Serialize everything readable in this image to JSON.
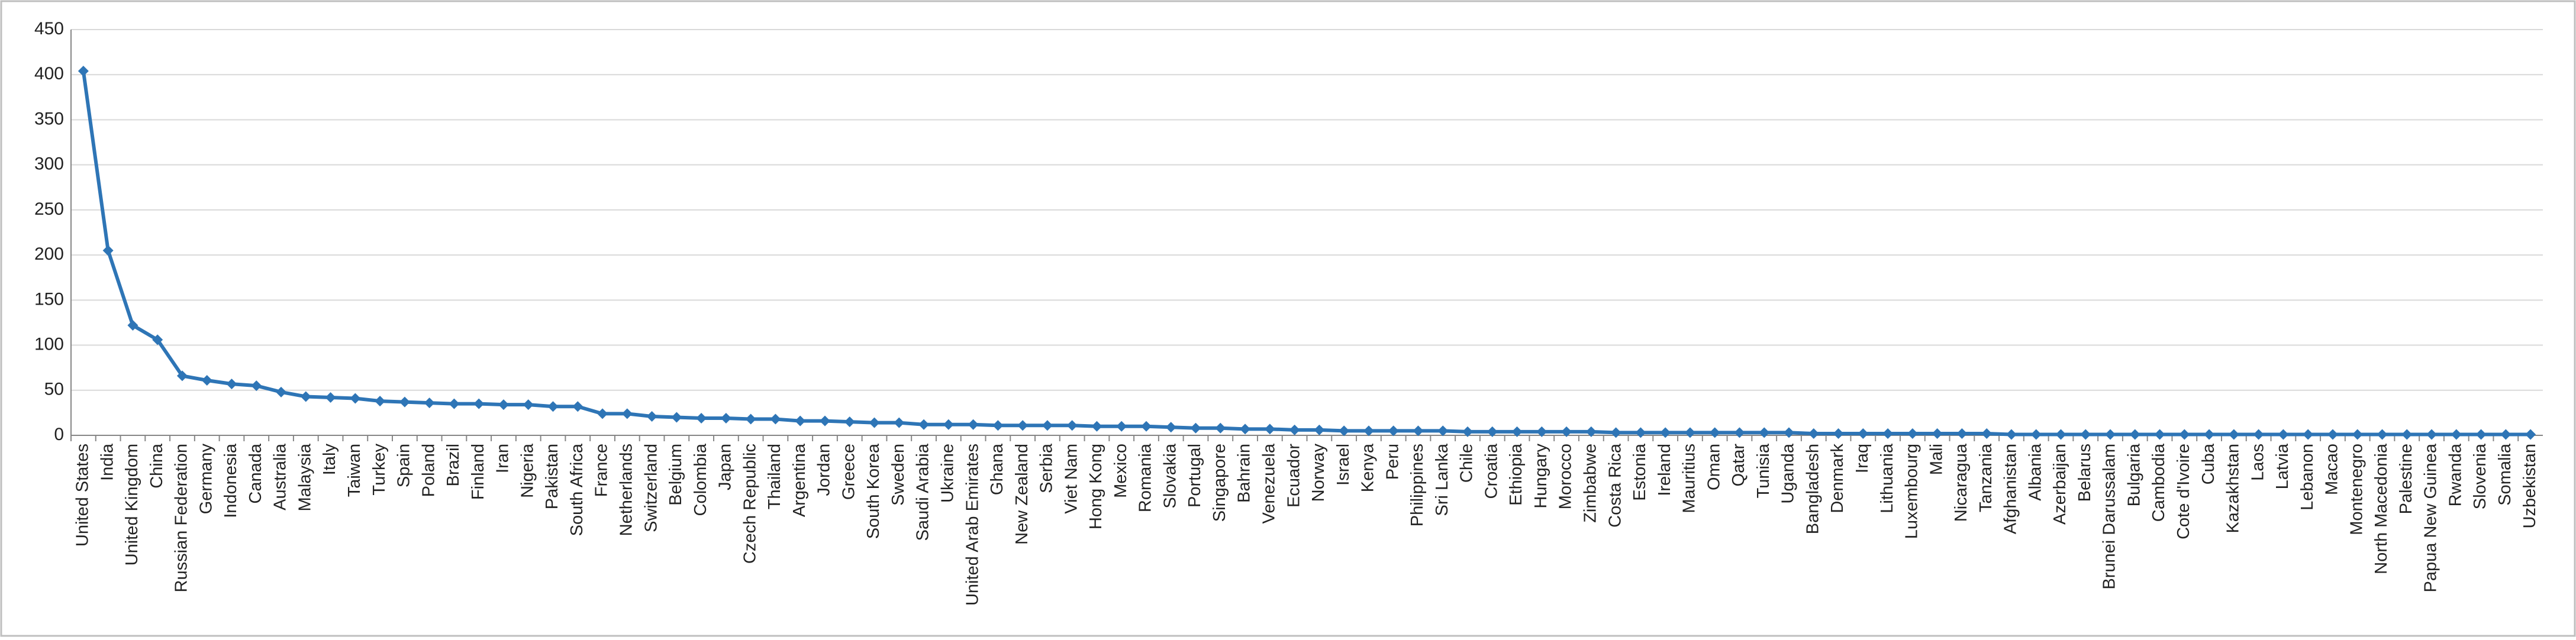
{
  "chart_data": {
    "type": "line",
    "categories": [
      "United States",
      "India",
      "United Kingdom",
      "China",
      "Russian Federation",
      "Germany",
      "Indonesia",
      "Canada",
      "Australia",
      "Malaysia",
      "Italy",
      "Taiwan",
      "Turkey",
      "Spain",
      "Poland",
      "Brazil",
      "Finland",
      "Iran",
      "Nigeria",
      "Pakistan",
      "South Africa",
      "France",
      "Netherlands",
      "Switzerland",
      "Belgium",
      "Colombia",
      "Japan",
      "Czech Republic",
      "Thailand",
      "Argentina",
      "Jordan",
      "Greece",
      "South Korea",
      "Sweden",
      "Saudi Arabia",
      "Ukraine",
      "United Arab Emirates",
      "Ghana",
      "New Zealand",
      "Serbia",
      "Viet Nam",
      "Hong Kong",
      "Mexico",
      "Romania",
      "Slovakia",
      "Portugal",
      "Singapore",
      "Bahrain",
      "Venezuela",
      "Ecuador",
      "Norway",
      "Israel",
      "Kenya",
      "Peru",
      "Philippines",
      "Sri Lanka",
      "Chile",
      "Croatia",
      "Ethiopia",
      "Hungary",
      "Morocco",
      "Zimbabwe",
      "Costa Rica",
      "Estonia",
      "Ireland",
      "Mauritius",
      "Oman",
      "Qatar",
      "Tunisia",
      "Uganda",
      "Bangladesh",
      "Denmark",
      "Iraq",
      "Lithuania",
      "Luxembourg",
      "Mali",
      "Nicaragua",
      "Tanzania",
      "Afghanistan",
      "Albania",
      "Azerbaijan",
      "Belarus",
      "Brunei Darussalam",
      "Bulgaria",
      "Cambodia",
      "Cote d'Ivoire",
      "Cuba",
      "Kazakhstan",
      "Laos",
      "Latvia",
      "Lebanon",
      "Macao",
      "Montenegro",
      "North Macedonia",
      "Palestine",
      "Papua New Guinea",
      "Rwanda",
      "Slovenia",
      "Somalia",
      "Uzbekistan"
    ],
    "values": [
      404,
      205,
      122,
      106,
      66,
      61,
      57,
      55,
      48,
      43,
      42,
      41,
      38,
      37,
      36,
      35,
      35,
      34,
      34,
      32,
      32,
      24,
      24,
      21,
      20,
      19,
      19,
      18,
      18,
      16,
      16,
      15,
      14,
      14,
      12,
      12,
      12,
      11,
      11,
      11,
      11,
      10,
      10,
      10,
      9,
      8,
      8,
      7,
      7,
      6,
      6,
      5,
      5,
      5,
      5,
      5,
      4,
      4,
      4,
      4,
      4,
      4,
      3,
      3,
      3,
      3,
      3,
      3,
      3,
      3,
      2,
      2,
      2,
      2,
      2,
      2,
      2,
      2,
      1,
      1,
      1,
      1,
      1,
      1,
      1,
      1,
      1,
      1,
      1,
      1,
      1,
      1,
      1,
      1,
      1,
      1,
      1,
      1,
      1,
      1
    ],
    "color": "#2e75b6",
    "ylim": [
      0,
      450
    ],
    "yticks": [
      0,
      50,
      100,
      150,
      200,
      250,
      300,
      350,
      400,
      450
    ],
    "grid": true
  }
}
